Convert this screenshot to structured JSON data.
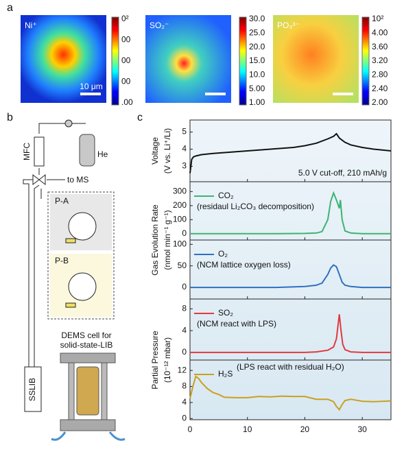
{
  "panels": {
    "a": {
      "label": "a",
      "images": [
        {
          "label": "Ni⁺",
          "scalebar": "10 μm",
          "colorbar_ticks": [
            "0²",
            "00",
            "00",
            "00",
            ".00"
          ]
        },
        {
          "label": "SO₂⁻",
          "colorbar_ticks": [
            "30.0",
            "25.0",
            "20.0",
            "15.0",
            "10.0",
            "5.00",
            "1.00"
          ]
        },
        {
          "label": "PO₃³⁻",
          "colorbar_ticks": [
            "10²",
            "4.00",
            "3.60",
            "3.20",
            "2.80",
            "2.40",
            "2.00"
          ]
        }
      ]
    },
    "b": {
      "label": "b",
      "mfc": "MFC",
      "gas": "He",
      "outlet": "to MS",
      "pa": "P-A",
      "pb": "P-B",
      "cell_caption": [
        "DEMS cell for",
        "solid-state-LIB"
      ],
      "battery": "SSLIB"
    },
    "c": {
      "label": "c",
      "ylabels": [
        "Gas Evolution Rate",
        "(nmol min⁻¹ g⁻¹)",
        "Partial Pressure",
        "(10⁻¹² mbar)"
      ]
    }
  },
  "chart_data": [
    {
      "type": "line",
      "ylabel": [
        "Voltage",
        "(V vs. Li⁺/Li)"
      ],
      "annotation": "5.0 V cut-off, 210 mAh/g",
      "xlim": [
        0,
        35
      ],
      "ylim": [
        2.1,
        5.7
      ],
      "yticks": [
        3,
        4,
        5
      ],
      "series": [
        {
          "color": "#111111",
          "x": [
            0,
            0.3,
            0.6,
            1,
            2,
            4,
            6,
            8,
            10,
            12,
            14,
            16,
            18,
            20,
            22,
            24,
            25,
            25.5,
            26,
            27,
            28,
            30,
            32,
            35
          ],
          "values": [
            2.6,
            3.4,
            3.55,
            3.6,
            3.68,
            3.75,
            3.8,
            3.85,
            3.9,
            3.95,
            4.0,
            4.05,
            4.1,
            4.2,
            4.35,
            4.6,
            4.75,
            4.9,
            4.65,
            4.4,
            4.25,
            4.1,
            4.0,
            3.9
          ]
        }
      ]
    },
    {
      "type": "line",
      "annotation": "(residaul Li₂CO₃ decomposition)",
      "xlim": [
        0,
        35
      ],
      "ylim": [
        -45,
        370
      ],
      "yticks": [
        0,
        100,
        200,
        300
      ],
      "series": [
        {
          "name": "CO₂",
          "color": "#3cb371",
          "x": [
            0,
            5,
            10,
            15,
            20,
            22,
            23,
            24,
            24.5,
            25,
            25.5,
            26,
            26.2,
            26.5,
            27,
            28,
            30,
            35
          ],
          "values": [
            0,
            0,
            0,
            0,
            2,
            5,
            15,
            100,
            230,
            290,
            240,
            180,
            240,
            100,
            20,
            5,
            0,
            0
          ]
        }
      ]
    },
    {
      "type": "line",
      "annotation": "(NCM lattice oxygen loss)",
      "xlim": [
        0,
        35
      ],
      "ylim": [
        -27,
        110
      ],
      "yticks": [
        0,
        50,
        100
      ],
      "series": [
        {
          "name": "O₂",
          "color": "#2f6fc0",
          "x": [
            0,
            5,
            10,
            15,
            20,
            22,
            23,
            24,
            24.5,
            25,
            25.5,
            26,
            26.5,
            27,
            28,
            30,
            35
          ],
          "values": [
            0,
            0,
            0,
            0,
            2,
            5,
            10,
            30,
            45,
            52,
            48,
            30,
            12,
            5,
            2,
            0,
            0
          ]
        }
      ]
    },
    {
      "type": "line",
      "annotation": "(NCM react with LPS)",
      "xlim": [
        0,
        35
      ],
      "ylim": [
        -1.4,
        9.8
      ],
      "yticks": [
        0,
        4,
        8
      ],
      "series": [
        {
          "name": "SO₂",
          "color": "#e0393e",
          "x": [
            0,
            5,
            10,
            15,
            20,
            22,
            24,
            25,
            25.5,
            26,
            26.3,
            26.6,
            27,
            28,
            30,
            35
          ],
          "values": [
            0,
            0,
            0,
            0,
            0,
            0.1,
            0.4,
            1,
            2.5,
            7,
            4,
            1.5,
            0.5,
            0.1,
            0,
            0
          ]
        }
      ]
    },
    {
      "type": "line",
      "annotation": "(LPS react with residual H₂O)",
      "xlim": [
        0,
        35
      ],
      "ylim": [
        -0.3,
        14.6
      ],
      "yticks": [
        0,
        4,
        8,
        12
      ],
      "xticks": [
        0,
        10,
        20,
        30
      ],
      "series": [
        {
          "name": "H₂S",
          "color": "#c9a020",
          "x": [
            0,
            0.5,
            1,
            1.5,
            2,
            3,
            4,
            5,
            6,
            8,
            10,
            12,
            14,
            16,
            18,
            20,
            22,
            24,
            25,
            25.5,
            26,
            26.5,
            27,
            28,
            30,
            32,
            35
          ],
          "values": [
            5,
            8,
            10.5,
            10,
            9,
            7.5,
            6.5,
            6,
            5.3,
            5.2,
            5.2,
            5.5,
            5.4,
            5.6,
            5.5,
            5.5,
            4.8,
            4.8,
            4.2,
            3,
            2.2,
            3.5,
            4.5,
            4.8,
            4.3,
            4.2,
            4.4
          ]
        }
      ]
    }
  ]
}
